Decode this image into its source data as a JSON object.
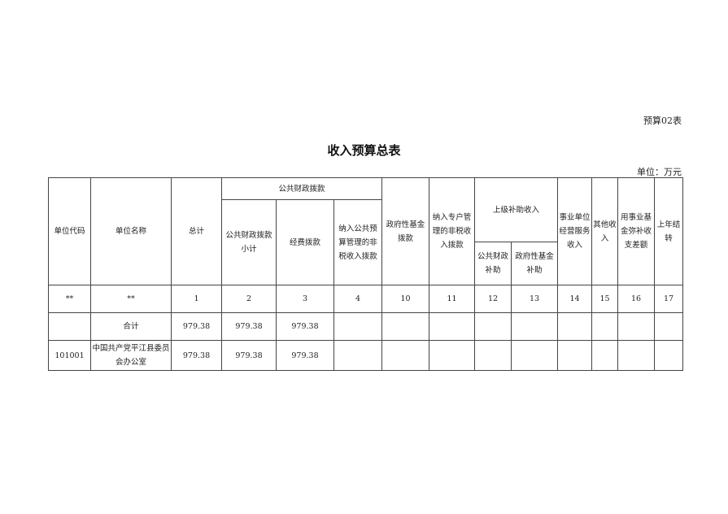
{
  "form_no": "预算02表",
  "title": "收入预算总表",
  "unit": "单位：万元",
  "headers": {
    "code": "单位代码",
    "name": "单位名称",
    "total": "总计",
    "public_group": "公共财政拨款",
    "public_subtotal": "公共财政拨款小计",
    "funding": "经费拨款",
    "nontax_public": "纳入公共预算管理的非税收入拨款",
    "gov_fund": "政府性基金拨款",
    "nontax_special": "纳入专户管理的非税收入拨款",
    "superior_group": "上级补助收入",
    "sup_public": "公共财政补助",
    "sup_gov_fund": "政府性基金补助",
    "business": "事业单位经营服务收入",
    "other": "其他收入",
    "reserve": "用事业基金弥补收支差额",
    "carryover": "上年结转"
  },
  "index_row": [
    "**",
    "**",
    "1",
    "2",
    "3",
    "4",
    "10",
    "11",
    "12",
    "13",
    "14",
    "15",
    "16",
    "17"
  ],
  "rows": [
    [
      "",
      "合计",
      "979.38",
      "979.38",
      "979.38",
      "",
      "",
      "",
      "",
      "",
      "",
      "",
      "",
      ""
    ],
    [
      "101001",
      "中国共产党平江县委员会办公室",
      "979.38",
      "979.38",
      "979.38",
      "",
      "",
      "",
      "",
      "",
      "",
      "",
      "",
      ""
    ]
  ]
}
